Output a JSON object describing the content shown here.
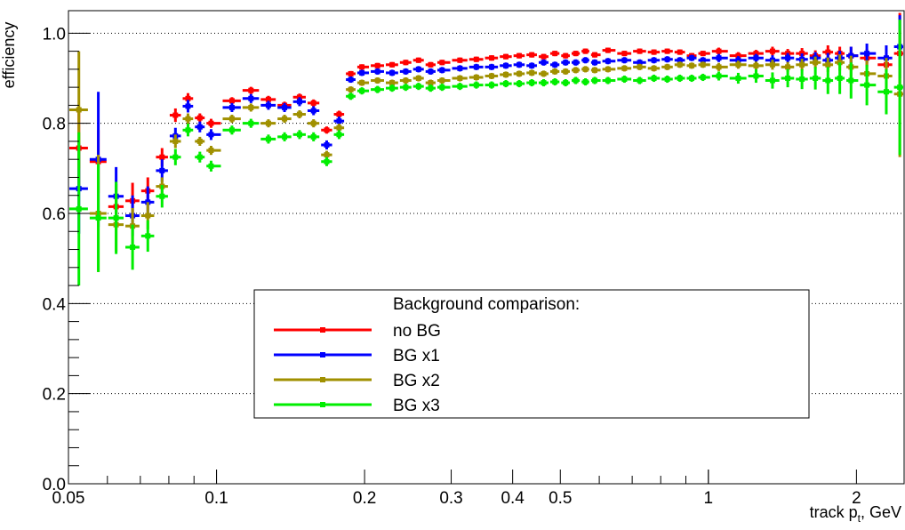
{
  "chart_data": {
    "type": "scatter",
    "title": "",
    "xlabel": "track p_t, GeV",
    "xlabel_parts": {
      "pre": "track p",
      "sub": "t",
      "post": ", GeV"
    },
    "ylabel": "efficiency",
    "xscale": "log",
    "xlim": [
      0.05,
      2.5
    ],
    "ylim": [
      0.0,
      1.05
    ],
    "grid": "y-dotted",
    "x_ticks": [
      {
        "v": 0.05,
        "label": "0.05"
      },
      {
        "v": 0.1,
        "label": "0.1"
      },
      {
        "v": 0.2,
        "label": "0.2"
      },
      {
        "v": 0.3,
        "label": "0.3"
      },
      {
        "v": 0.4,
        "label": "0.4"
      },
      {
        "v": 0.5,
        "label": "0.5"
      },
      {
        "v": 1,
        "label": "1"
      },
      {
        "v": 2,
        "label": "2"
      }
    ],
    "y_ticks": [
      {
        "v": 0.0,
        "label": "0.0"
      },
      {
        "v": 0.2,
        "label": "0.2"
      },
      {
        "v": 0.4,
        "label": "0.4"
      },
      {
        "v": 0.6,
        "label": "0.6"
      },
      {
        "v": 0.8,
        "label": "0.8"
      },
      {
        "v": 1.0,
        "label": "1.0"
      }
    ],
    "legend": {
      "title": "Background comparison:",
      "placement": "center-bottom"
    },
    "x": [
      0.0525,
      0.0575,
      0.0625,
      0.0675,
      0.0725,
      0.0775,
      0.0825,
      0.0875,
      0.0925,
      0.0975,
      0.1075,
      0.1175,
      0.1275,
      0.1375,
      0.1475,
      0.1575,
      0.1675,
      0.1775,
      0.1875,
      0.1975,
      0.2125,
      0.2275,
      0.2425,
      0.2575,
      0.2725,
      0.2875,
      0.3125,
      0.3375,
      0.3625,
      0.3875,
      0.4125,
      0.4375,
      0.4625,
      0.4875,
      0.5125,
      0.5375,
      0.5625,
      0.5875,
      0.625,
      0.675,
      0.725,
      0.775,
      0.825,
      0.875,
      0.925,
      0.975,
      1.05,
      1.15,
      1.25,
      1.35,
      1.45,
      1.55,
      1.65,
      1.75,
      1.85,
      1.95,
      2.1,
      2.3,
      2.45
    ],
    "series": [
      {
        "name": "no BG",
        "color": "#ff0000",
        "values": [
          0.745,
          0.715,
          0.615,
          0.628,
          0.65,
          0.725,
          0.818,
          0.855,
          0.812,
          0.8,
          0.85,
          0.873,
          0.853,
          0.84,
          0.858,
          0.845,
          0.785,
          0.82,
          0.91,
          0.925,
          0.928,
          0.93,
          0.935,
          0.94,
          0.93,
          0.935,
          0.94,
          0.942,
          0.945,
          0.948,
          0.95,
          0.952,
          0.948,
          0.955,
          0.95,
          0.955,
          0.96,
          0.952,
          0.962,
          0.955,
          0.96,
          0.958,
          0.96,
          0.958,
          0.95,
          0.955,
          0.96,
          0.95,
          0.955,
          0.96,
          0.955,
          0.955,
          0.95,
          0.958,
          0.955,
          0.95,
          0.945,
          0.93,
          0.955
        ],
        "errors": [
          0.09,
          0.07,
          0.05,
          0.04,
          0.03,
          0.02,
          0.015,
          0.012,
          0.01,
          0.01,
          0.008,
          0.008,
          0.008,
          0.008,
          0.008,
          0.008,
          0.008,
          0.008,
          0.006,
          0.006,
          0.006,
          0.006,
          0.006,
          0.006,
          0.006,
          0.006,
          0.006,
          0.006,
          0.006,
          0.006,
          0.006,
          0.006,
          0.006,
          0.006,
          0.006,
          0.006,
          0.006,
          0.006,
          0.006,
          0.006,
          0.006,
          0.006,
          0.006,
          0.006,
          0.006,
          0.006,
          0.008,
          0.008,
          0.008,
          0.01,
          0.01,
          0.012,
          0.012,
          0.015,
          0.015,
          0.02,
          0.02,
          0.025,
          0.09
        ]
      },
      {
        "name": "BG x1",
        "color": "#0000ff",
        "values": [
          0.655,
          0.72,
          0.638,
          0.595,
          0.625,
          0.695,
          0.772,
          0.838,
          0.792,
          0.775,
          0.835,
          0.855,
          0.84,
          0.835,
          0.848,
          0.828,
          0.752,
          0.805,
          0.897,
          0.912,
          0.915,
          0.912,
          0.915,
          0.92,
          0.915,
          0.918,
          0.922,
          0.925,
          0.925,
          0.928,
          0.93,
          0.928,
          0.935,
          0.93,
          0.935,
          0.935,
          0.94,
          0.935,
          0.938,
          0.94,
          0.935,
          0.94,
          0.942,
          0.94,
          0.945,
          0.94,
          0.945,
          0.94,
          0.945,
          0.94,
          0.945,
          0.942,
          0.945,
          0.94,
          0.945,
          0.95,
          0.955,
          0.945,
          0.97
        ],
        "errors": [
          0.1,
          0.15,
          0.065,
          0.045,
          0.035,
          0.025,
          0.018,
          0.014,
          0.012,
          0.012,
          0.01,
          0.01,
          0.01,
          0.01,
          0.01,
          0.01,
          0.01,
          0.01,
          0.007,
          0.007,
          0.007,
          0.007,
          0.007,
          0.007,
          0.007,
          0.007,
          0.007,
          0.007,
          0.007,
          0.007,
          0.007,
          0.007,
          0.007,
          0.007,
          0.007,
          0.007,
          0.007,
          0.007,
          0.007,
          0.007,
          0.007,
          0.007,
          0.007,
          0.007,
          0.007,
          0.007,
          0.009,
          0.009,
          0.009,
          0.011,
          0.011,
          0.013,
          0.013,
          0.016,
          0.016,
          0.02,
          0.022,
          0.028,
          0.07
        ]
      },
      {
        "name": "BG x2",
        "color": "#a09000",
        "values": [
          0.83,
          0.6,
          0.575,
          0.572,
          0.595,
          0.66,
          0.76,
          0.81,
          0.76,
          0.74,
          0.81,
          0.835,
          0.8,
          0.81,
          0.82,
          0.8,
          0.73,
          0.79,
          0.875,
          0.89,
          0.895,
          0.89,
          0.895,
          0.9,
          0.89,
          0.895,
          0.9,
          0.902,
          0.905,
          0.908,
          0.91,
          0.912,
          0.91,
          0.915,
          0.915,
          0.918,
          0.92,
          0.918,
          0.92,
          0.922,
          0.925,
          0.922,
          0.925,
          0.93,
          0.928,
          0.93,
          0.925,
          0.93,
          0.928,
          0.93,
          0.925,
          0.93,
          0.935,
          0.93,
          0.935,
          0.925,
          0.91,
          0.905,
          0.865
        ],
        "errors": [
          0.13,
          0.13,
          0.06,
          0.04,
          0.03,
          0.02,
          0.015,
          0.012,
          0.01,
          0.01,
          0.009,
          0.009,
          0.009,
          0.009,
          0.009,
          0.009,
          0.009,
          0.009,
          0.007,
          0.007,
          0.007,
          0.007,
          0.007,
          0.007,
          0.007,
          0.007,
          0.007,
          0.007,
          0.007,
          0.007,
          0.007,
          0.007,
          0.007,
          0.007,
          0.007,
          0.007,
          0.007,
          0.007,
          0.007,
          0.007,
          0.007,
          0.007,
          0.007,
          0.007,
          0.007,
          0.007,
          0.009,
          0.009,
          0.009,
          0.011,
          0.011,
          0.013,
          0.013,
          0.016,
          0.018,
          0.025,
          0.03,
          0.04,
          0.14
        ]
      },
      {
        "name": "BG x3",
        "color": "#00ee00",
        "values": [
          0.61,
          0.59,
          0.59,
          0.525,
          0.55,
          0.638,
          0.725,
          0.785,
          0.725,
          0.705,
          0.785,
          0.8,
          0.765,
          0.77,
          0.775,
          0.77,
          0.715,
          0.775,
          0.86,
          0.872,
          0.875,
          0.878,
          0.88,
          0.882,
          0.878,
          0.88,
          0.882,
          0.885,
          0.885,
          0.888,
          0.888,
          0.89,
          0.89,
          0.892,
          0.89,
          0.895,
          0.892,
          0.895,
          0.895,
          0.898,
          0.895,
          0.9,
          0.898,
          0.9,
          0.9,
          0.902,
          0.905,
          0.9,
          0.905,
          0.895,
          0.9,
          0.898,
          0.9,
          0.895,
          0.9,
          0.895,
          0.885,
          0.87,
          0.88
        ],
        "errors": [
          0.17,
          0.12,
          0.08,
          0.05,
          0.035,
          0.025,
          0.018,
          0.014,
          0.012,
          0.012,
          0.01,
          0.01,
          0.01,
          0.01,
          0.01,
          0.01,
          0.01,
          0.01,
          0.008,
          0.008,
          0.008,
          0.008,
          0.008,
          0.008,
          0.008,
          0.008,
          0.008,
          0.008,
          0.008,
          0.008,
          0.008,
          0.008,
          0.008,
          0.008,
          0.008,
          0.008,
          0.008,
          0.008,
          0.008,
          0.008,
          0.008,
          0.008,
          0.008,
          0.008,
          0.008,
          0.008,
          0.01,
          0.012,
          0.015,
          0.018,
          0.02,
          0.022,
          0.025,
          0.03,
          0.035,
          0.04,
          0.045,
          0.05,
          0.15
        ]
      }
    ]
  }
}
